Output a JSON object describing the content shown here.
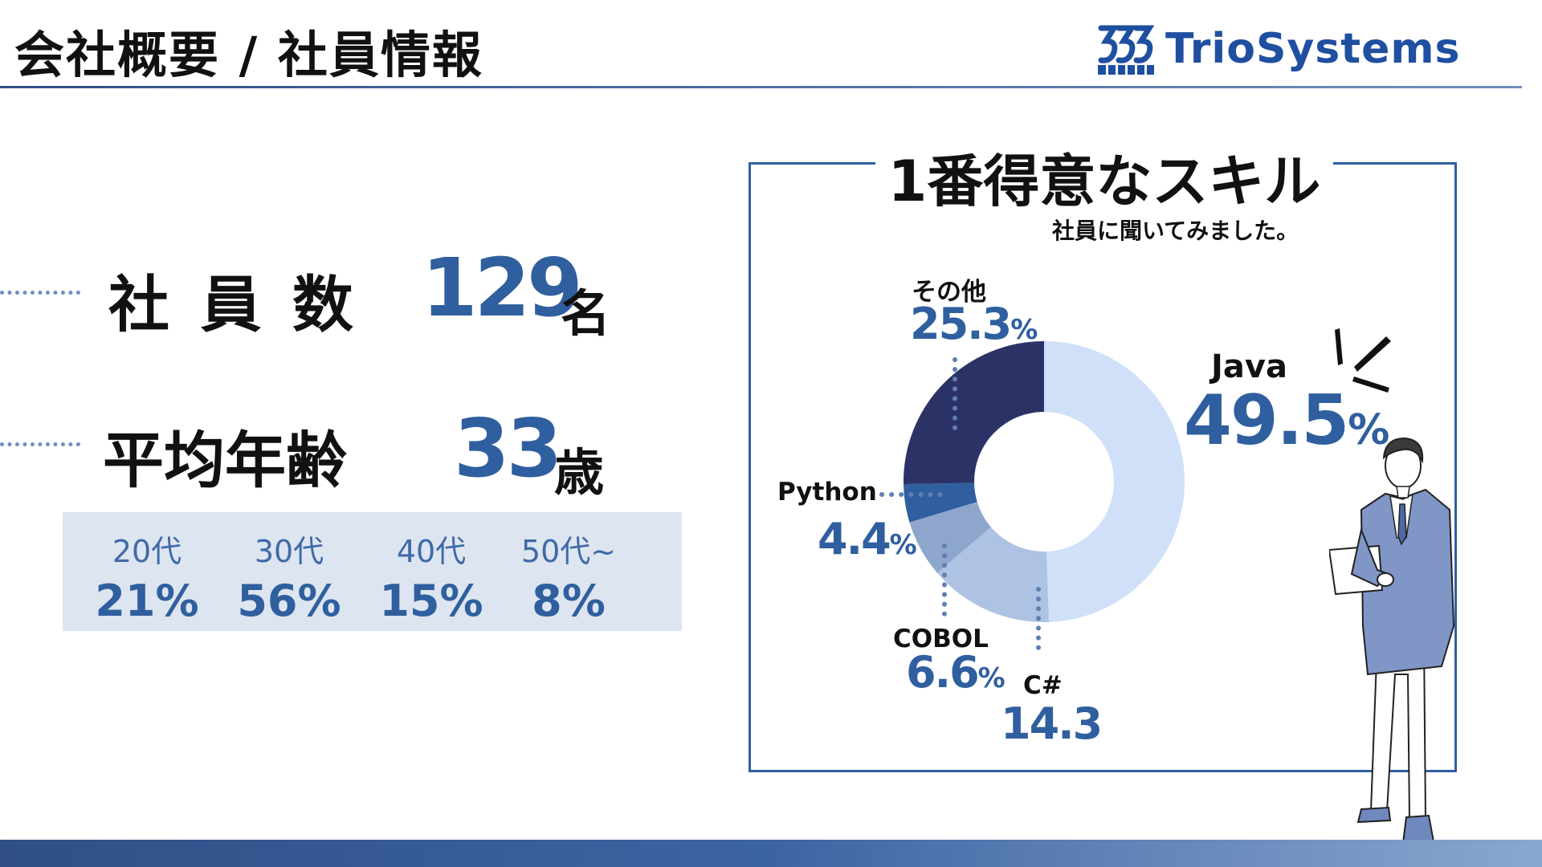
{
  "header": {
    "title": "会社概要 / 社員情報",
    "logo_text": "TrioSystems"
  },
  "stats": {
    "employees": {
      "label": "社 員 数",
      "value": "129",
      "unit": "名"
    },
    "average_age": {
      "label": "平均年齢",
      "value": "33",
      "unit": "歳"
    }
  },
  "age_distribution": [
    {
      "label": "20代",
      "value": "21%"
    },
    {
      "label": "30代",
      "value": "56%"
    },
    {
      "label": "40代",
      "value": "15%"
    },
    {
      "label": "50代~",
      "value": "8%"
    }
  ],
  "chart_data": {
    "type": "pie",
    "title": "1番得意なスキル",
    "subtitle": "社員に聞いてみました。",
    "slices": [
      {
        "name": "Java",
        "value": 49.5,
        "value_text": "49.5",
        "unit": "%",
        "color": "#cfe0f8"
      },
      {
        "name": "C#",
        "value": 14.3,
        "value_text": "14.3",
        "unit": "",
        "color": "#aec3e3"
      },
      {
        "name": "COBOL",
        "value": 6.6,
        "value_text": "6.6",
        "unit": "%",
        "color": "#8fa6cc"
      },
      {
        "name": "Python",
        "value": 4.4,
        "value_text": "4.4",
        "unit": "%",
        "color": "#2f5f9f"
      },
      {
        "name": "その他",
        "value": 25.3,
        "value_text": "25.3",
        "unit": "%",
        "color": "#2b3266"
      }
    ]
  },
  "colors": {
    "accent": "#2f5f9f",
    "dark": "#2b3266",
    "age_box_bg": "#dde5f0"
  }
}
